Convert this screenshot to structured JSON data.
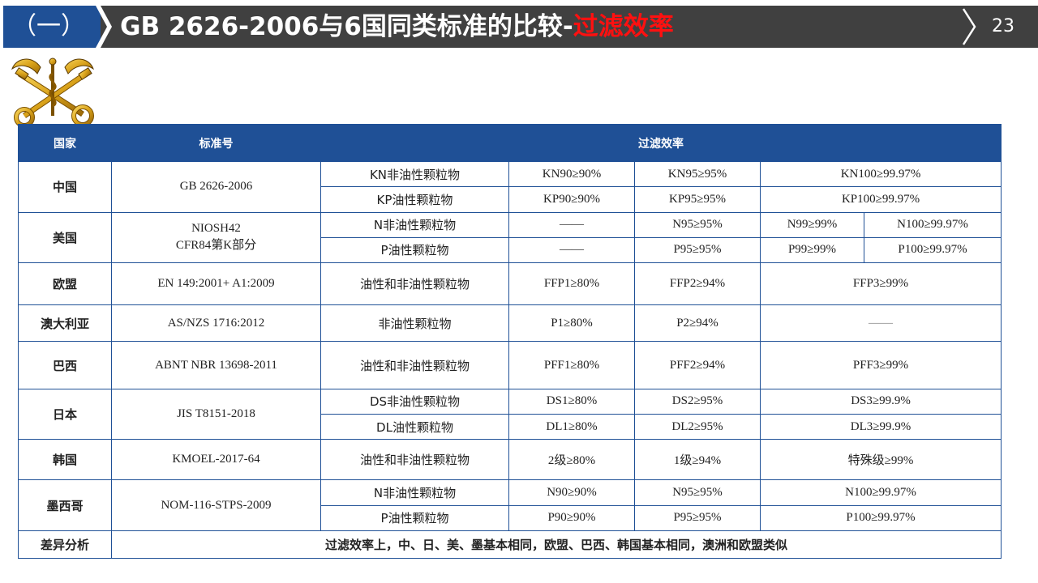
{
  "header": {
    "section_label": "（一）",
    "title_main": "GB 2626-2006与6国同类标准的比较-",
    "title_highlight": "过滤效率",
    "page_number": "23",
    "bar_color": "#404040",
    "accent_color": "#1f5096",
    "highlight_color": "#ff1010"
  },
  "logo": {
    "icon": "keys-and-caduceus-emblem-icon"
  },
  "table": {
    "headers": {
      "country": "国家",
      "standard": "标准号",
      "efficiency": "过滤效率"
    },
    "rows": {
      "china": {
        "country": "中国",
        "standard": "GB 2626-2006",
        "r1": {
          "cat": "KN非油性颗粒物",
          "v1": "KN90≥90%",
          "v2": "KN95≥95%",
          "v3": "KN100≥99.97%"
        },
        "r2": {
          "cat": "KP油性颗粒物",
          "v1": "KP90≥90%",
          "v2": "KP95≥95%",
          "v3": "KP100≥99.97%"
        }
      },
      "usa": {
        "country": "美国",
        "standard_l1": "NIOSH42",
        "standard_l2": "CFR84第K部分",
        "r1": {
          "cat": "N非油性颗粒物",
          "v1": "——",
          "v2": "N95≥95%",
          "v3": "N99≥99%",
          "v4": "N100≥99.97%"
        },
        "r2": {
          "cat": "P油性颗粒物",
          "v1": "——",
          "v2": "P95≥95%",
          "v3": "P99≥99%",
          "v4": "P100≥99.97%"
        }
      },
      "eu": {
        "country": "欧盟",
        "standard": "EN 149:2001+ A1:2009",
        "cat": "油性和非油性颗粒物",
        "v1": "FFP1≥80%",
        "v2": "FFP2≥94%",
        "v3": "FFP3≥99%"
      },
      "australia": {
        "country": "澳大利亚",
        "standard": "AS/NZS 1716:2012",
        "cat": "非油性颗粒物",
        "v1": "P1≥80%",
        "v2": "P2≥94%",
        "v3": "——"
      },
      "brazil": {
        "country": "巴西",
        "standard": "ABNT NBR 13698-2011",
        "cat": "油性和非油性颗粒物",
        "v1": "PFF1≥80%",
        "v2": "PFF2≥94%",
        "v3": "PFF3≥99%"
      },
      "japan": {
        "country": "日本",
        "standard": "JIS T8151-2018",
        "r1": {
          "cat": "DS非油性颗粒物",
          "v1": "DS1≥80%",
          "v2": "DS2≥95%",
          "v3": "DS3≥99.9%"
        },
        "r2": {
          "cat": "DL油性颗粒物",
          "v1": "DL1≥80%",
          "v2": "DL2≥95%",
          "v3": "DL3≥99.9%"
        }
      },
      "korea": {
        "country": "韩国",
        "standard": "KMOEL-2017-64",
        "cat": "油性和非油性颗粒物",
        "v1": "2级≥80%",
        "v2": "1级≥94%",
        "v3": "特殊级≥99%"
      },
      "mexico": {
        "country": "墨西哥",
        "standard": "NOM-116-STPS-2009",
        "r1": {
          "cat": "N非油性颗粒物",
          "v1": "N90≥90%",
          "v2": "N95≥95%",
          "v3": "N100≥99.97%"
        },
        "r2": {
          "cat": "P油性颗粒物",
          "v1": "P90≥90%",
          "v2": "P95≥95%",
          "v3": "P100≥99.97%"
        }
      }
    },
    "summary": {
      "label": "差异分析",
      "text": "过滤效率上，中、日、美、墨基本相同，欧盟、巴西、韩国基本相同，澳洲和欧盟类似"
    }
  }
}
